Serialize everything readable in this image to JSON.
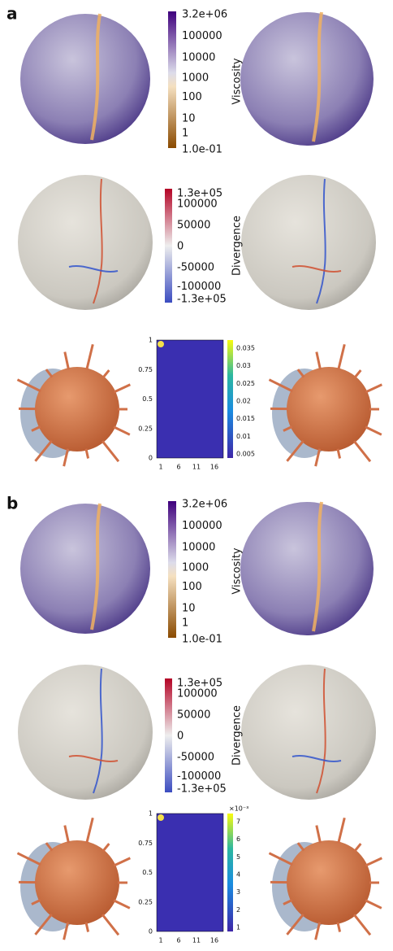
{
  "panels": [
    {
      "label": "a",
      "viscosity": {
        "title": "Viscosity",
        "ticks": [
          "3.2e+06",
          "100000",
          "10000",
          "1000",
          "100",
          "10",
          "1",
          "1.0e-01"
        ]
      },
      "divergence": {
        "title": "Divergence",
        "ticks": [
          "1.3e+05",
          "100000",
          "50000",
          "0",
          "-50000",
          "-100000",
          "-1.3e+05"
        ]
      },
      "heatmap": {
        "yticks": [
          "1",
          "0.75",
          "0.5",
          "0.25",
          "0"
        ],
        "xticks": [
          "1",
          "6",
          "11",
          "16"
        ],
        "colorbar_ticks": [
          "0.035",
          "0.03",
          "0.025",
          "0.02",
          "0.015",
          "0.01",
          "0.005"
        ]
      }
    },
    {
      "label": "b",
      "viscosity": {
        "title": "Viscosity",
        "ticks": [
          "3.2e+06",
          "100000",
          "10000",
          "1000",
          "100",
          "10",
          "1",
          "1.0e-01"
        ]
      },
      "divergence": {
        "title": "Divergence",
        "ticks": [
          "1.3e+05",
          "100000",
          "50000",
          "0",
          "-50000",
          "-100000",
          "-1.3e+05"
        ]
      },
      "heatmap": {
        "yticks": [
          "1",
          "0.75",
          "0.5",
          "0.25",
          "0"
        ],
        "xticks": [
          "1",
          "6",
          "11",
          "16"
        ],
        "colorbar_scale": "×10⁻³",
        "colorbar_ticks": [
          "7",
          "6",
          "5",
          "4",
          "3",
          "2",
          "1"
        ]
      }
    }
  ]
}
